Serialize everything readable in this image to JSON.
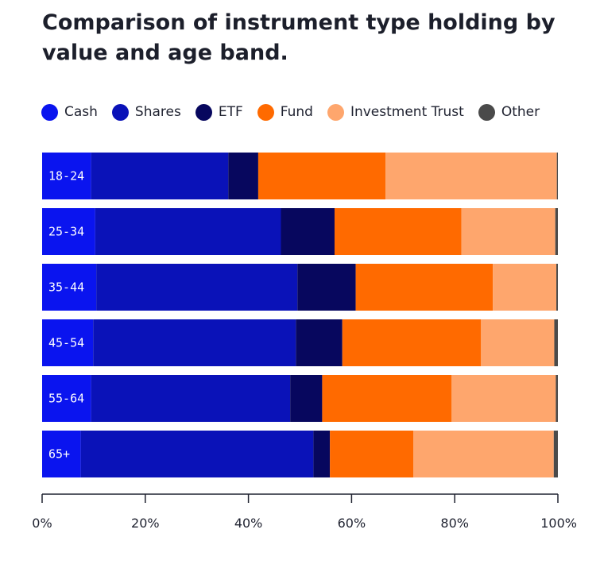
{
  "chart_data": {
    "type": "bar",
    "orientation": "horizontal",
    "stacked": true,
    "title": "Comparison of instrument type holding by value and age band.",
    "categories": [
      "18-24",
      "25-34",
      "35-44",
      "45-54",
      "55-64",
      "65+"
    ],
    "series": [
      {
        "name": "Cash",
        "color": "#0a14ef",
        "values": [
          9.5,
          10.3,
          10.5,
          9.9,
          9.5,
          7.5
        ]
      },
      {
        "name": "Shares",
        "color": "#0a12b8",
        "values": [
          26.6,
          36.0,
          39.0,
          39.3,
          38.6,
          45.1
        ]
      },
      {
        "name": "ETF",
        "color": "#07075e",
        "values": [
          5.8,
          10.4,
          11.3,
          9.0,
          6.2,
          3.2
        ]
      },
      {
        "name": "Fund",
        "color": "#ff6a00",
        "values": [
          24.7,
          24.6,
          26.6,
          26.9,
          25.1,
          16.2
        ]
      },
      {
        "name": "Investment Trust",
        "color": "#fea66d",
        "values": [
          33.2,
          18.2,
          12.3,
          14.2,
          20.2,
          27.2
        ]
      },
      {
        "name": "Other",
        "color": "#4a4a4a",
        "values": [
          0.2,
          0.5,
          0.3,
          0.7,
          0.4,
          0.8
        ]
      }
    ],
    "xlim": [
      0,
      100
    ],
    "x_ticks": [
      "0%",
      "20%",
      "40%",
      "60%",
      "80%",
      "100%"
    ],
    "x_tick_values": [
      0,
      20,
      40,
      60,
      80,
      100
    ],
    "legend_position": "top",
    "grid": false
  }
}
